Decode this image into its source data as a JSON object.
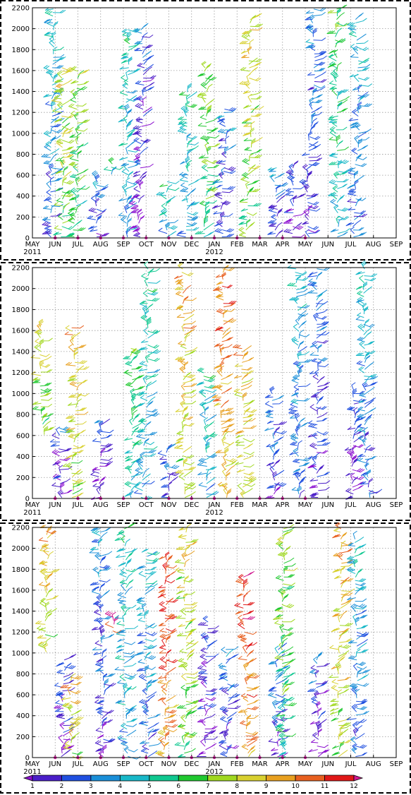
{
  "chart_data": {
    "type": "wind-barb time-height",
    "panels": 3,
    "y_range": [
      0,
      2200
    ],
    "y_ticks": [
      0,
      200,
      400,
      600,
      800,
      1000,
      1200,
      1400,
      1600,
      1800,
      2000,
      2200
    ],
    "x_ticks": [
      "MAY",
      "JUN",
      "JUL",
      "AUG",
      "SEP",
      "OCT",
      "NOV",
      "DEC",
      "JAN",
      "FEB",
      "MAR",
      "APR",
      "MAY",
      "JUN",
      "JUL",
      "AUG",
      "SEP"
    ],
    "x_year_labels": [
      {
        "at": "MAY",
        "text": "2011"
      },
      {
        "at": "JAN",
        "text": "2012"
      }
    ],
    "grid": true,
    "colorbar": {
      "labels": [
        "1",
        "2",
        "3",
        "4",
        "5",
        "6",
        "7",
        "8",
        "9",
        "10",
        "11",
        "12"
      ],
      "colors": [
        "#8c10d0",
        "#4a1ec8",
        "#2050e0",
        "#1a8fd8",
        "#18b8c8",
        "#10c890",
        "#20c830",
        "#a0d820",
        "#d8d030",
        "#e8a020",
        "#e86020",
        "#e01818",
        "#d01a90"
      ]
    },
    "observation_month_markers": [
      "JUN",
      "JUL",
      "AUG",
      "SEP",
      "OCT",
      "NOV",
      "DEC",
      "JAN",
      "FEB",
      "MAR",
      "APR",
      "MAY",
      "JUN",
      "JUL",
      "AUG"
    ],
    "profile_columns": [
      [
        {
          "x": 0.8,
          "bottom": 0,
          "top": 2200,
          "base": 3
        },
        {
          "x": 1.25,
          "bottom": 0,
          "top": 1650,
          "base": 7
        },
        {
          "x": 1.8,
          "bottom": 0,
          "top": 1600,
          "base": 6
        },
        {
          "x": 2.85,
          "bottom": 0,
          "top": 600,
          "base": 2
        },
        {
          "x": 3.45,
          "bottom": 600,
          "top": 720,
          "base": 4
        },
        {
          "x": 4.15,
          "bottom": 0,
          "top": 2000,
          "base": 4
        },
        {
          "x": 4.75,
          "bottom": 0,
          "top": 2000,
          "base": 1
        },
        {
          "x": 5.95,
          "bottom": 0,
          "top": 560,
          "base": 4
        },
        {
          "x": 6.75,
          "bottom": 0,
          "top": 1400,
          "base": 4
        },
        {
          "x": 7.55,
          "bottom": 0,
          "top": 1650,
          "base": 6
        },
        {
          "x": 8.35,
          "bottom": 0,
          "top": 1250,
          "base": 2
        },
        {
          "x": 9.35,
          "bottom": 0,
          "top": 2100,
          "base": 7
        },
        {
          "x": 10.7,
          "bottom": 0,
          "top": 700,
          "base": 2
        },
        {
          "x": 11.45,
          "bottom": 0,
          "top": 700,
          "base": 1
        },
        {
          "x": 12.15,
          "bottom": 0,
          "top": 2200,
          "base": 2
        },
        {
          "x": 13.4,
          "bottom": 0,
          "top": 2200,
          "base": 5
        },
        {
          "x": 14.15,
          "bottom": 0,
          "top": 2100,
          "base": 3
        }
      ],
      [
        {
          "x": 0.55,
          "bottom": 600,
          "top": 1650,
          "base": 7
        },
        {
          "x": 1.3,
          "bottom": 0,
          "top": 700,
          "base": 1
        },
        {
          "x": 1.75,
          "bottom": 0,
          "top": 1650,
          "base": 8
        },
        {
          "x": 2.95,
          "bottom": 0,
          "top": 750,
          "base": 1
        },
        {
          "x": 4.35,
          "bottom": 0,
          "top": 1450,
          "base": 5
        },
        {
          "x": 4.8,
          "bottom": 0,
          "top": 2200,
          "base": 4
        },
        {
          "x": 5.95,
          "bottom": 0,
          "top": 500,
          "base": 2
        },
        {
          "x": 6.75,
          "bottom": 0,
          "top": 2200,
          "base": 8
        },
        {
          "x": 7.65,
          "bottom": 0,
          "top": 1200,
          "base": 4
        },
        {
          "x": 8.55,
          "bottom": 0,
          "top": 2200,
          "base": 9
        },
        {
          "x": 9.25,
          "bottom": 0,
          "top": 1450,
          "base": 8
        },
        {
          "x": 10.65,
          "bottom": 0,
          "top": 1000,
          "base": 2
        },
        {
          "x": 11.75,
          "bottom": 0,
          "top": 2200,
          "base": 3
        },
        {
          "x": 12.55,
          "bottom": 0,
          "top": 2200,
          "base": 2
        },
        {
          "x": 14.1,
          "bottom": 0,
          "top": 1050,
          "base": 1
        },
        {
          "x": 14.85,
          "bottom": 0,
          "top": 2200,
          "base": 3
        }
      ],
      [
        {
          "x": 0.6,
          "bottom": 1000,
          "top": 2200,
          "base": 8
        },
        {
          "x": 1.25,
          "bottom": 0,
          "top": 950,
          "base": 1
        },
        {
          "x": 1.75,
          "bottom": 0,
          "top": 800,
          "base": 8
        },
        {
          "x": 3.1,
          "bottom": 0,
          "top": 2200,
          "base": 2
        },
        {
          "x": 3.55,
          "bottom": 1200,
          "top": 1350,
          "base": 11
        },
        {
          "x": 4.2,
          "bottom": 0,
          "top": 2200,
          "base": 4
        },
        {
          "x": 5.1,
          "bottom": 0,
          "top": 2000,
          "base": 3
        },
        {
          "x": 5.75,
          "bottom": 0,
          "top": 1950,
          "base": 10
        },
        {
          "x": 6.75,
          "bottom": 0,
          "top": 2200,
          "base": 7
        },
        {
          "x": 7.65,
          "bottom": 0,
          "top": 1300,
          "base": 1
        },
        {
          "x": 8.55,
          "bottom": 0,
          "top": 1050,
          "base": 2
        },
        {
          "x": 9.5,
          "bottom": 0,
          "top": 1750,
          "base": 10
        },
        {
          "x": 10.8,
          "bottom": 0,
          "top": 1050,
          "base": 2
        },
        {
          "x": 11.15,
          "bottom": 0,
          "top": 2200,
          "base": 6
        },
        {
          "x": 12.6,
          "bottom": 0,
          "top": 950,
          "base": 1
        },
        {
          "x": 13.5,
          "bottom": 0,
          "top": 2200,
          "base": 8
        },
        {
          "x": 14.2,
          "bottom": 0,
          "top": 2100,
          "base": 3
        }
      ]
    ]
  }
}
